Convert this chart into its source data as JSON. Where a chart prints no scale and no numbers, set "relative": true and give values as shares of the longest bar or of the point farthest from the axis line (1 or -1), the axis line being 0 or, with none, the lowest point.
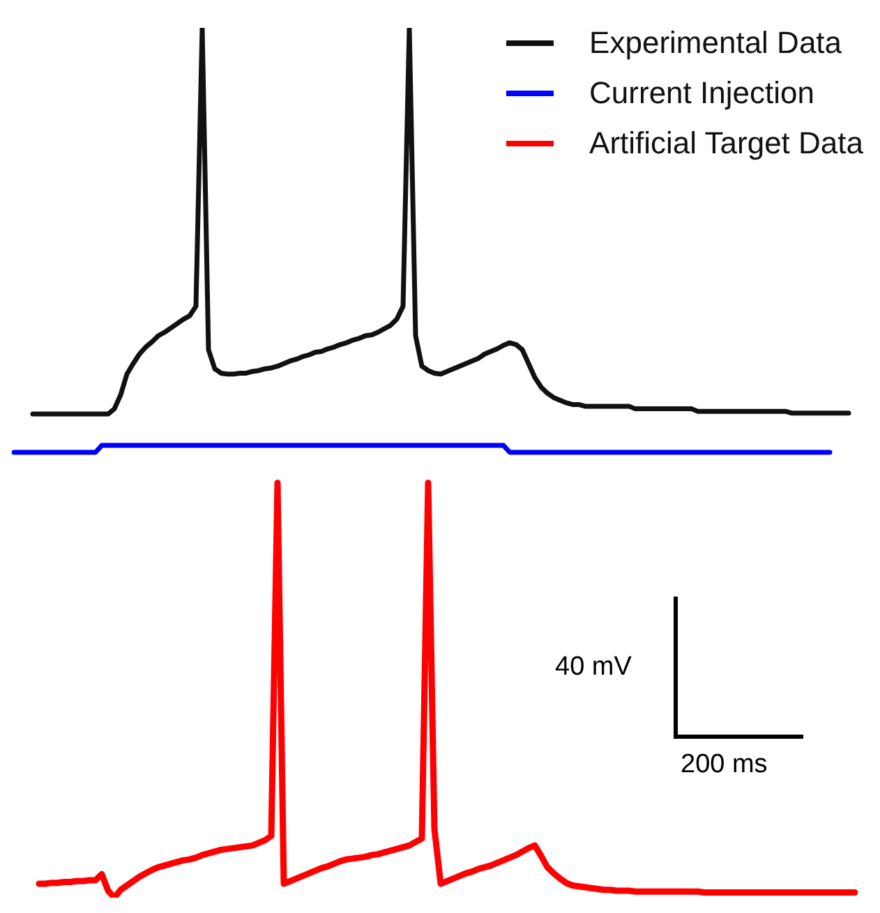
{
  "chart_data": {
    "type": "line",
    "relative": true,
    "legend": "top right",
    "marker": "none",
    "line_style": "solid",
    "annotations": [
      "40 mV",
      "200 ms"
    ],
    "categories": [
      null,
      null,
      null,
      null,
      null,
      null,
      null,
      null,
      null,
      null,
      null,
      null,
      null,
      null,
      null,
      null,
      null,
      null,
      null,
      null,
      null,
      null,
      null,
      null,
      null,
      null,
      null,
      null,
      null,
      null,
      null,
      null,
      null,
      null,
      null,
      null,
      null,
      null,
      null,
      null,
      null,
      null,
      null,
      null,
      null,
      null,
      null,
      null,
      null,
      null,
      null,
      null,
      null,
      null,
      null,
      null,
      null,
      null,
      null,
      null,
      null,
      null,
      null,
      null,
      null,
      null,
      null,
      null,
      null,
      null,
      null,
      null,
      null,
      null,
      null,
      null,
      null,
      null,
      null,
      null,
      null,
      null,
      null,
      null,
      null,
      null,
      null,
      null,
      null,
      null,
      null,
      null,
      null,
      null,
      null,
      null,
      null,
      null,
      null,
      null,
      null,
      null,
      null,
      null,
      null,
      null,
      null,
      null,
      null,
      null,
      null,
      null,
      null,
      null,
      null,
      null,
      null,
      null,
      null,
      null,
      null,
      null,
      null,
      null,
      null,
      null,
      null,
      null,
      null,
      null,
      null,
      null,
      null,
      null,
      null
    ],
    "series": [
      {
        "name": "Experimental Data",
        "color": "#111111",
        "values": [
          null,
          null,
          null,
          0.556,
          0.556,
          0.556,
          0.556,
          0.556,
          0.556,
          0.556,
          0.556,
          0.556,
          0.556,
          0.556,
          0.556,
          0.556,
          0.562,
          0.578,
          0.602,
          0.614,
          0.625,
          0.633,
          0.639,
          0.646,
          0.65,
          0.655,
          0.66,
          0.665,
          0.669,
          0.68,
          1,
          0.63,
          0.608,
          0.603,
          0.602,
          0.602,
          0.603,
          0.603,
          0.605,
          0.606,
          0.608,
          0.609,
          0.611,
          0.614,
          0.617,
          0.619,
          0.622,
          0.624,
          0.627,
          0.628,
          0.631,
          0.633,
          0.636,
          0.638,
          0.641,
          0.643,
          0.646,
          0.647,
          0.65,
          0.654,
          0.658,
          0.665,
          0.68,
          1,
          0.646,
          0.611,
          0.606,
          0.603,
          0.602,
          0.605,
          0.608,
          0.611,
          0.614,
          0.617,
          0.62,
          0.625,
          0.628,
          0.631,
          0.635,
          0.638,
          0.636,
          0.63,
          0.614,
          0.598,
          0.587,
          0.58,
          0.575,
          0.572,
          0.569,
          0.567,
          0.567,
          0.565,
          0.565,
          0.565,
          0.565,
          0.565,
          0.565,
          0.565,
          0.565,
          0.562,
          0.562,
          0.562,
          0.562,
          0.562,
          0.562,
          0.562,
          0.562,
          0.562,
          0.562,
          0.559,
          0.559,
          0.559,
          0.559,
          0.559,
          0.559,
          0.559,
          0.559,
          0.559,
          0.559,
          0.559,
          0.559,
          0.559,
          0.559,
          0.559,
          0.557,
          0.557,
          0.557,
          0.557,
          0.557,
          0.557,
          0.557,
          0.557,
          0.557,
          0.557,
          null
        ]
      },
      {
        "name": "Current Injection",
        "color": "#0000ff",
        "values": [
          0.512,
          0.512,
          0.512,
          0.512,
          0.512,
          0.512,
          0.512,
          0.512,
          0.512,
          0.512,
          0.512,
          0.512,
          0.512,
          0.512,
          0.52,
          0.52,
          0.52,
          0.52,
          0.52,
          0.52,
          0.52,
          0.52,
          0.52,
          0.52,
          0.52,
          0.52,
          0.52,
          0.52,
          0.52,
          0.52,
          0.52,
          0.52,
          0.52,
          0.52,
          0.52,
          0.52,
          0.52,
          0.52,
          0.52,
          0.52,
          0.52,
          0.52,
          0.52,
          0.52,
          0.52,
          0.52,
          0.52,
          0.52,
          0.52,
          0.52,
          0.52,
          0.52,
          0.52,
          0.52,
          0.52,
          0.52,
          0.52,
          0.52,
          0.52,
          0.52,
          0.52,
          0.52,
          0.52,
          0.52,
          0.52,
          0.52,
          0.52,
          0.52,
          0.52,
          0.52,
          0.52,
          0.52,
          0.52,
          0.52,
          0.52,
          0.52,
          0.52,
          0.52,
          0.52,
          0.512,
          0.512,
          0.512,
          0.512,
          0.512,
          0.512,
          0.512,
          0.512,
          0.512,
          0.512,
          0.512,
          0.512,
          0.512,
          0.512,
          0.512,
          0.512,
          0.512,
          0.512,
          0.512,
          0.512,
          0.512,
          0.512,
          0.512,
          0.512,
          0.512,
          0.512,
          0.512,
          0.512,
          0.512,
          0.512,
          0.512,
          0.512,
          0.512,
          0.512,
          0.512,
          0.512,
          0.512,
          0.512,
          0.512,
          0.512,
          0.512,
          0.512,
          0.512,
          0.512,
          0.512,
          0.512,
          0.512,
          0.512,
          0.512,
          0.512,
          0.512,
          0.512,
          null,
          null,
          null,
          null
        ]
      },
      {
        "name": "Artificial Target Data",
        "color": "#ff0000",
        "values": [
          null,
          null,
          null,
          null,
          0.016,
          0.016,
          0.017,
          0.017,
          0.018,
          0.018,
          0.019,
          0.019,
          0.02,
          0.02,
          0.027,
          0.008,
          0,
          0.009,
          0.014,
          0.019,
          0.024,
          0.028,
          0.032,
          0.035,
          0.037,
          0.039,
          0.041,
          0.043,
          0.044,
          0.046,
          0.049,
          0.051,
          0.053,
          0.055,
          0.056,
          0.057,
          0.058,
          0.059,
          0.06,
          0.063,
          0.066,
          0.071,
          0.477,
          0.016,
          0.019,
          0.022,
          0.025,
          0.028,
          0.031,
          0.034,
          0.036,
          0.039,
          0.042,
          0.044,
          0.045,
          0.046,
          0.047,
          0.049,
          0.05,
          0.052,
          0.054,
          0.056,
          0.058,
          0.06,
          0.064,
          0.068,
          0.477,
          0.079,
          0.016,
          0.019,
          0.022,
          0.025,
          0.028,
          0.03,
          0.033,
          0.035,
          0.037,
          0.04,
          0.043,
          0.046,
          0.049,
          0.053,
          0.057,
          0.06,
          0.048,
          0.035,
          0.028,
          0.022,
          0.017,
          0.014,
          0.013,
          0.012,
          0.011,
          0.01,
          0.009,
          0.009,
          0.008,
          0.008,
          0.008,
          0.007,
          0.007,
          0.007,
          0.007,
          0.007,
          0.007,
          0.007,
          0.007,
          0.007,
          0.007,
          0.007,
          0.006,
          0.006,
          0.006,
          0.006,
          0.006,
          0.006,
          0.006,
          0.006,
          0.006,
          0.006,
          0.006,
          0.006,
          0.006,
          0.006,
          0.006,
          0.006,
          0.006,
          0.006,
          0.006,
          0.006,
          0.006,
          0.006,
          0.006,
          0.006,
          0.006
        ]
      }
    ]
  }
}
